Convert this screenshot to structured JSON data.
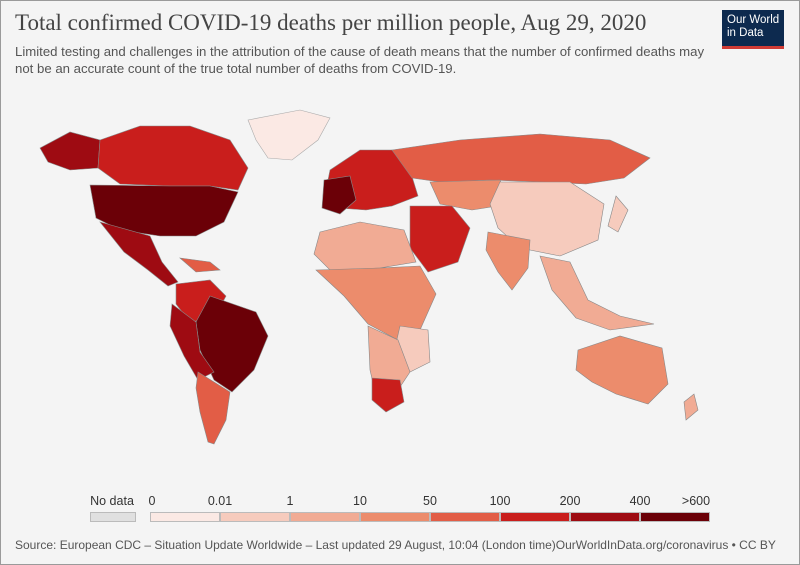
{
  "title": "Total confirmed COVID-19 deaths per million people, Aug 29, 2020",
  "subtitle": "Limited testing and challenges in the attribution of the cause of death means that the number of confirmed deaths may not be an accurate count of the true total number of deaths from COVID-19.",
  "logo": {
    "line1": "Our World",
    "line2": "in Data"
  },
  "legend": {
    "no_data_label": "No data",
    "no_data_color": "#e0e0e0",
    "ticks": [
      "0",
      "0.01",
      "1",
      "10",
      "50",
      "100",
      "200",
      "400",
      ">600"
    ],
    "bins": [
      {
        "color": "#fbe9e4"
      },
      {
        "color": "#f6cbbd"
      },
      {
        "color": "#f1ab94"
      },
      {
        "color": "#ec8c6c"
      },
      {
        "color": "#e25d46"
      },
      {
        "color": "#c91e1c"
      },
      {
        "color": "#9e0b12"
      },
      {
        "color": "#6b0007"
      }
    ]
  },
  "source": "Source: European CDC – Situation Update Worldwide – Last updated 29 August, 10:04 (London time)",
  "source_right": "OurWorldInData.org/coronavirus • CC BY"
}
